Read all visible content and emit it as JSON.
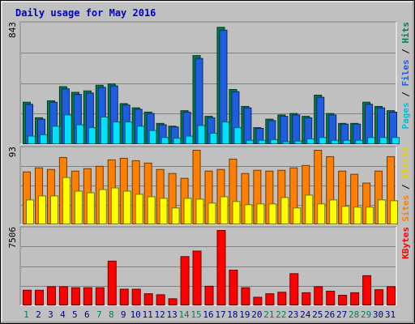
{
  "chart_data": {
    "type": "bar",
    "title": "Daily usage for May 2016",
    "categories": [
      "1",
      "2",
      "3",
      "4",
      "5",
      "6",
      "7",
      "8",
      "9",
      "10",
      "11",
      "12",
      "13",
      "14",
      "15",
      "16",
      "17",
      "18",
      "19",
      "20",
      "21",
      "22",
      "23",
      "24",
      "25",
      "26",
      "27",
      "28",
      "29",
      "30",
      "31"
    ],
    "weekend_days": [
      "1",
      "7",
      "8",
      "14",
      "15",
      "21",
      "22",
      "28",
      "29"
    ],
    "panels": [
      {
        "id": "top",
        "max_label": "843",
        "ylim": [
          0,
          843
        ],
        "axis_labels": [
          {
            "text": "Pages",
            "color": "#00bfd8"
          },
          {
            "text": " / ",
            "color": "#000000"
          },
          {
            "text": "Files",
            "color": "#1f5ddf"
          },
          {
            "text": " / ",
            "color": "#000000"
          },
          {
            "text": "Hits",
            "color": "#00805a"
          }
        ],
        "series": [
          {
            "name": "Hits",
            "color": "#008040",
            "values": [
              300,
              190,
              310,
              410,
              370,
              380,
              420,
              430,
              290,
              260,
              230,
              150,
              130,
              240,
              630,
              200,
              830,
              390,
              270,
              120,
              180,
              210,
              220,
              200,
              350,
              220,
              150,
              150,
              300,
              270,
              240
            ]
          },
          {
            "name": "Files",
            "color": "#1f5ddf",
            "values": [
              285,
              180,
              300,
              395,
              355,
              365,
              405,
              415,
              280,
              250,
              220,
              140,
              125,
              230,
              610,
              190,
              810,
              375,
              260,
              115,
              170,
              200,
              210,
              190,
              335,
              210,
              145,
              145,
              285,
              260,
              230
            ]
          },
          {
            "name": "Pages",
            "color": "#00e0ff",
            "values": [
              60,
              70,
              130,
              210,
              140,
              120,
              195,
              160,
              160,
              130,
              100,
              50,
              45,
              60,
              135,
              80,
              160,
              120,
              30,
              30,
              35,
              20,
              25,
              40,
              50,
              30,
              30,
              30,
              50,
              50,
              50
            ]
          }
        ]
      },
      {
        "id": "mid",
        "max_label": "93",
        "ylim": [
          0,
          93
        ],
        "axis_labels": [
          {
            "text": "Sites",
            "color": "#ff8000"
          },
          {
            "text": " / ",
            "color": "#000000"
          },
          {
            "text": "Visits",
            "color": "#e8d000"
          }
        ],
        "series": [
          {
            "name": "Visits",
            "color": "#ff8000",
            "values": [
              66,
              71,
              69,
              84,
              67,
              70,
              73,
              81,
              83,
              80,
              77,
              69,
              64,
              58,
              93,
              67,
              69,
              82,
              64,
              68,
              67,
              68,
              71,
              74,
              93,
              85,
              67,
              63,
              52,
              67,
              85
            ]
          },
          {
            "name": "Sites",
            "color": "#ffff00",
            "values": [
              31,
              36,
              36,
              59,
              42,
              40,
              44,
              46,
              42,
              38,
              35,
              33,
              21,
              33,
              32,
              27,
              35,
              29,
              25,
              26,
              26,
              34,
              21,
              37,
              26,
              31,
              23,
              22,
              22,
              31,
              30
            ]
          }
        ]
      },
      {
        "id": "bottom",
        "max_label": "7506",
        "ylim": [
          0,
          7506
        ],
        "axis_labels": [
          {
            "text": "KBytes",
            "color": "#ff0000"
          }
        ],
        "series": [
          {
            "name": "KBytes",
            "color": "#ff0000",
            "values": [
              1550,
              1550,
              1900,
              1900,
              1800,
              1800,
              1800,
              4450,
              1650,
              1650,
              1200,
              1100,
              700,
              4900,
              5450,
              1950,
              7506,
              3550,
              1800,
              850,
              1200,
              1350,
              3200,
              1300,
              1900,
              1450,
              1050,
              1300,
              3000,
              1600,
              1900
            ]
          }
        ]
      }
    ]
  }
}
